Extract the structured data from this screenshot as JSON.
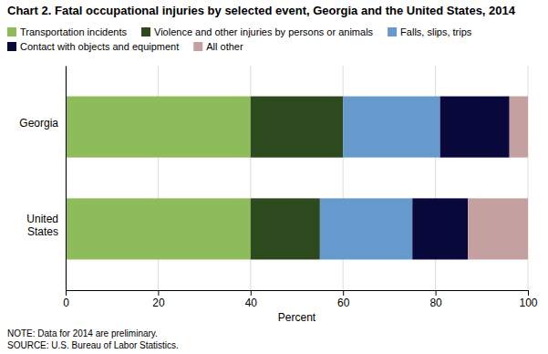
{
  "chart_data": {
    "type": "bar",
    "orientation": "horizontal",
    "stacked": true,
    "title": "Chart 2.  Fatal occupational injuries by selected event, Georgia and the United States, 2014",
    "categories": [
      "Georgia",
      "United\nStates"
    ],
    "series": [
      {
        "name": "Transportation incidents",
        "color": "#8FBC5A",
        "values": [
          40,
          40
        ]
      },
      {
        "name": "Violence and other injuries by persons or animals",
        "color": "#2D4A1E",
        "values": [
          20,
          15
        ]
      },
      {
        "name": "Falls, slips, trips",
        "color": "#6699CC",
        "values": [
          21,
          20
        ]
      },
      {
        "name": "Contact with objects and equipment",
        "color": "#08083A",
        "values": [
          15,
          12
        ]
      },
      {
        "name": "All other",
        "color": "#C4A0A0",
        "values": [
          4,
          13
        ]
      }
    ],
    "xlabel": "Percent",
    "xlim": [
      0,
      100
    ],
    "xticks": [
      0,
      20,
      40,
      60,
      80,
      100
    ],
    "grid": true,
    "legend": "top",
    "annotations": [
      "NOTE: Data for 2014 are preliminary.",
      "SOURCE: U.S. Bureau of Labor Statistics."
    ]
  }
}
